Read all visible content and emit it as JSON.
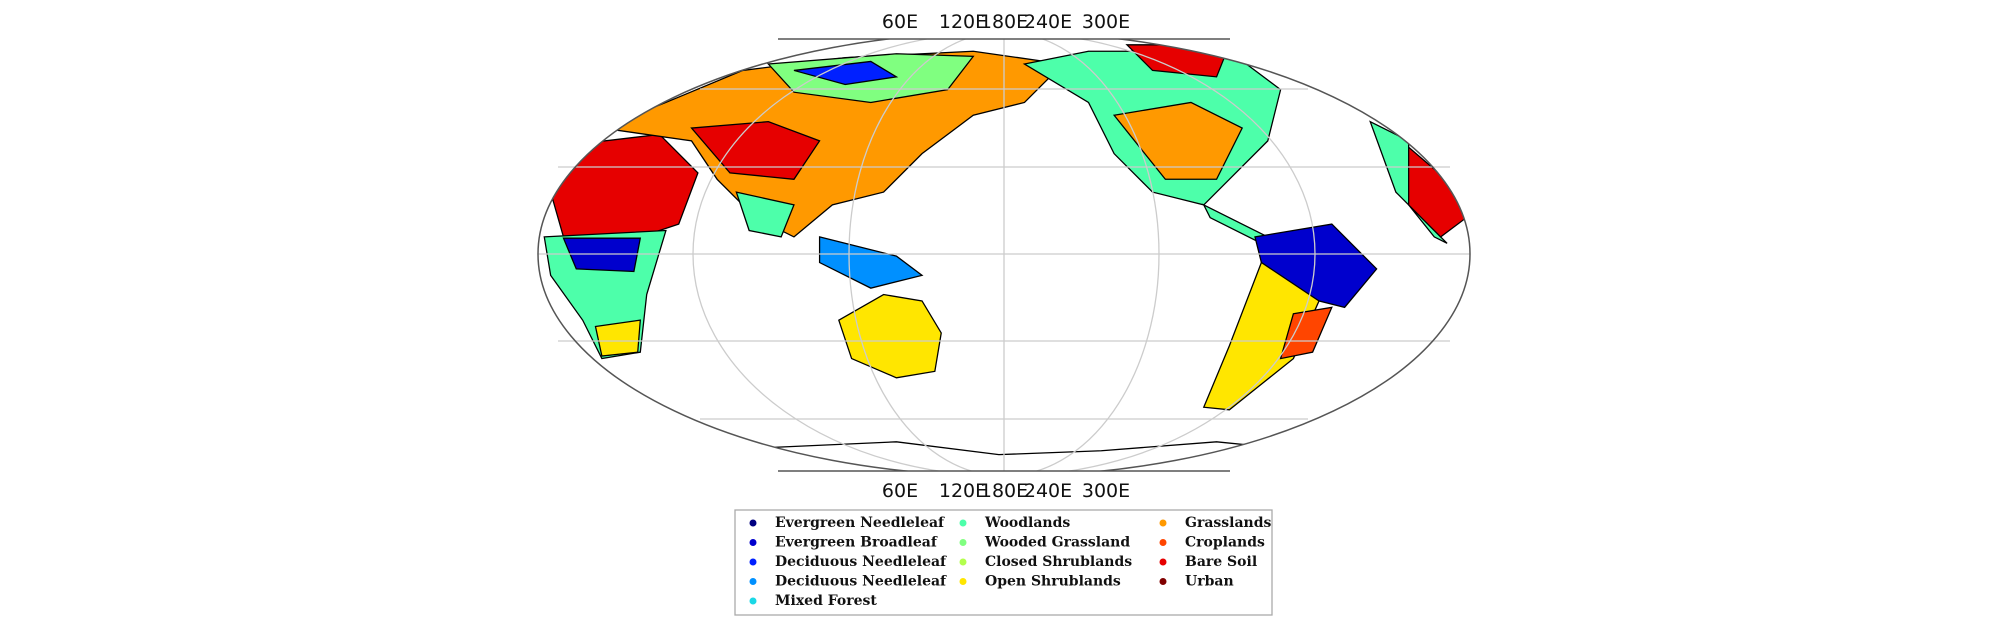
{
  "map": {
    "top_labels": [
      "60E",
      "120E",
      "180E",
      "240E",
      "300E"
    ],
    "bottom_labels": [
      "60E",
      "120E",
      "180E",
      "240E",
      "300E"
    ],
    "legend": [
      {
        "label": "Evergreen Needleleaf",
        "color": "#000080"
      },
      {
        "label": "Evergreen Broadleaf",
        "color": "#0000cd"
      },
      {
        "label": "Deciduous Needleleaf",
        "color": "#0020ff"
      },
      {
        "label": "Deciduous Needleleaf",
        "color": "#0090ff"
      },
      {
        "label": "Mixed Forest",
        "color": "#1ad8e6"
      },
      {
        "label": "Woodlands",
        "color": "#4dffaa"
      },
      {
        "label": "Wooded Grassland",
        "color": "#80ff80"
      },
      {
        "label": "Closed Shrublands",
        "color": "#b3ff4d"
      },
      {
        "label": "Open Shrublands",
        "color": "#ffe600"
      },
      {
        "label": "Grasslands",
        "color": "#ff9900"
      },
      {
        "label": "Croplands",
        "color": "#ff4500"
      },
      {
        "label": "Bare Soil",
        "color": "#e60000"
      },
      {
        "label": "Urban",
        "color": "#800000"
      }
    ]
  }
}
